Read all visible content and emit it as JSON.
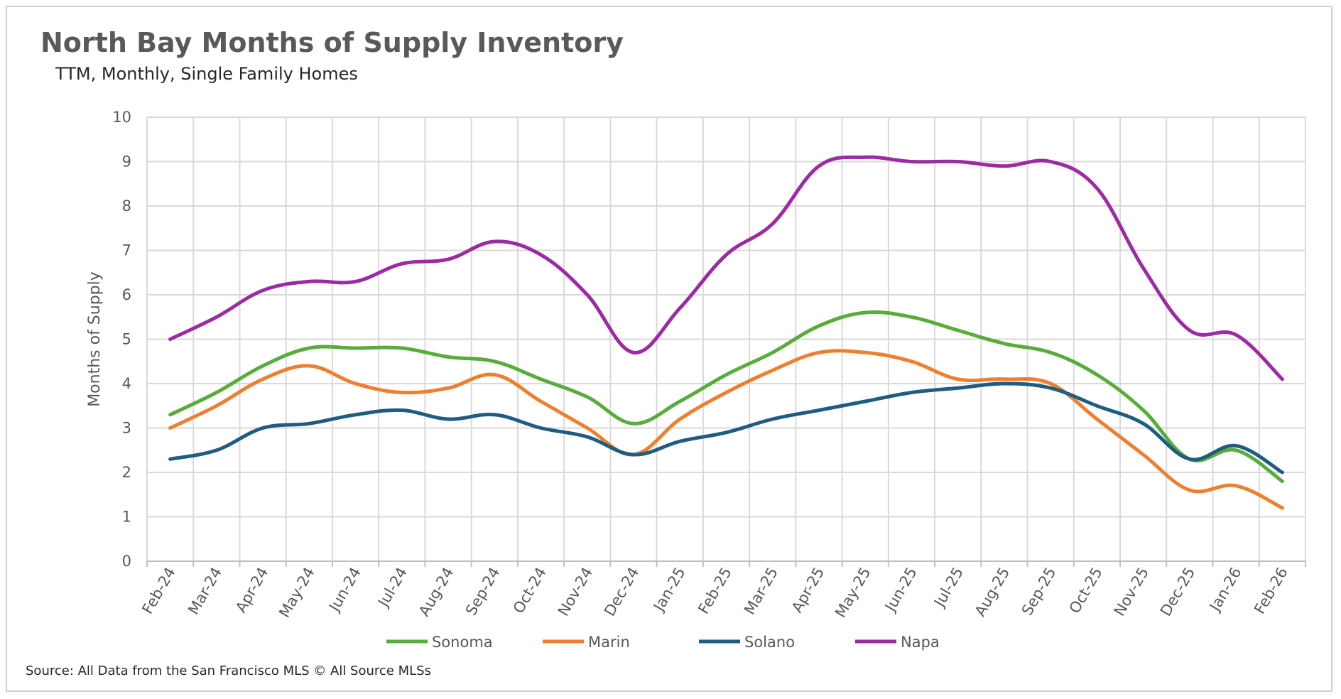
{
  "chart_data": {
    "type": "line",
    "title": "North Bay Months of Supply Inventory",
    "subtitle": "TTM, Monthly, Single Family Homes",
    "ylabel": "Months of Supply",
    "xlabel": "",
    "ylim": [
      0,
      10
    ],
    "yticks": [
      "0",
      "1",
      "2",
      "3",
      "4",
      "5",
      "6",
      "7",
      "8",
      "9",
      "10"
    ],
    "grid": true,
    "legend_position": "bottom",
    "categories": [
      "Feb-24",
      "Mar-24",
      "Apr-24",
      "May-24",
      "Jun-24",
      "Jul-24",
      "Aug-24",
      "Sep-24",
      "Oct-24",
      "Nov-24",
      "Dec-24",
      "Jan-25",
      "Feb-25",
      "Mar-25",
      "Apr-25",
      "May-25",
      "Jun-25",
      "Jul-25",
      "Aug-25",
      "Sep-25",
      "Oct-25",
      "Nov-25",
      "Dec-25",
      "Jan-26",
      "Feb-26"
    ],
    "series": [
      {
        "name": "Sonoma",
        "color": "#57ad3a",
        "values": [
          3.3,
          3.8,
          4.4,
          4.8,
          4.8,
          4.8,
          4.6,
          4.5,
          4.1,
          3.7,
          3.1,
          3.6,
          4.2,
          4.7,
          5.3,
          5.6,
          5.5,
          5.2,
          4.9,
          4.7,
          4.2,
          3.4,
          2.3,
          2.5,
          1.8
        ]
      },
      {
        "name": "Marin",
        "color": "#ee7f2f",
        "values": [
          3.0,
          3.5,
          4.1,
          4.4,
          4.0,
          3.8,
          3.9,
          4.2,
          3.6,
          3.0,
          2.4,
          3.2,
          3.8,
          4.3,
          4.7,
          4.7,
          4.5,
          4.1,
          4.1,
          4.0,
          3.2,
          2.4,
          1.6,
          1.7,
          1.2
        ]
      },
      {
        "name": "Solano",
        "color": "#1e5c81",
        "values": [
          2.3,
          2.5,
          3.0,
          3.1,
          3.3,
          3.4,
          3.2,
          3.3,
          3.0,
          2.8,
          2.4,
          2.7,
          2.9,
          3.2,
          3.4,
          3.6,
          3.8,
          3.9,
          4.0,
          3.9,
          3.5,
          3.1,
          2.3,
          2.6,
          2.0
        ]
      },
      {
        "name": "Napa",
        "color": "#9b2aa3",
        "values": [
          5.0,
          5.5,
          6.1,
          6.3,
          6.3,
          6.7,
          6.8,
          7.2,
          6.9,
          6.0,
          4.7,
          5.7,
          6.9,
          7.6,
          8.9,
          9.1,
          9.0,
          9.0,
          8.9,
          9.0,
          8.4,
          6.6,
          5.2,
          5.1,
          4.1
        ]
      }
    ],
    "source": "Source: All Data from the San Francisco MLS © All Source MLSs"
  }
}
